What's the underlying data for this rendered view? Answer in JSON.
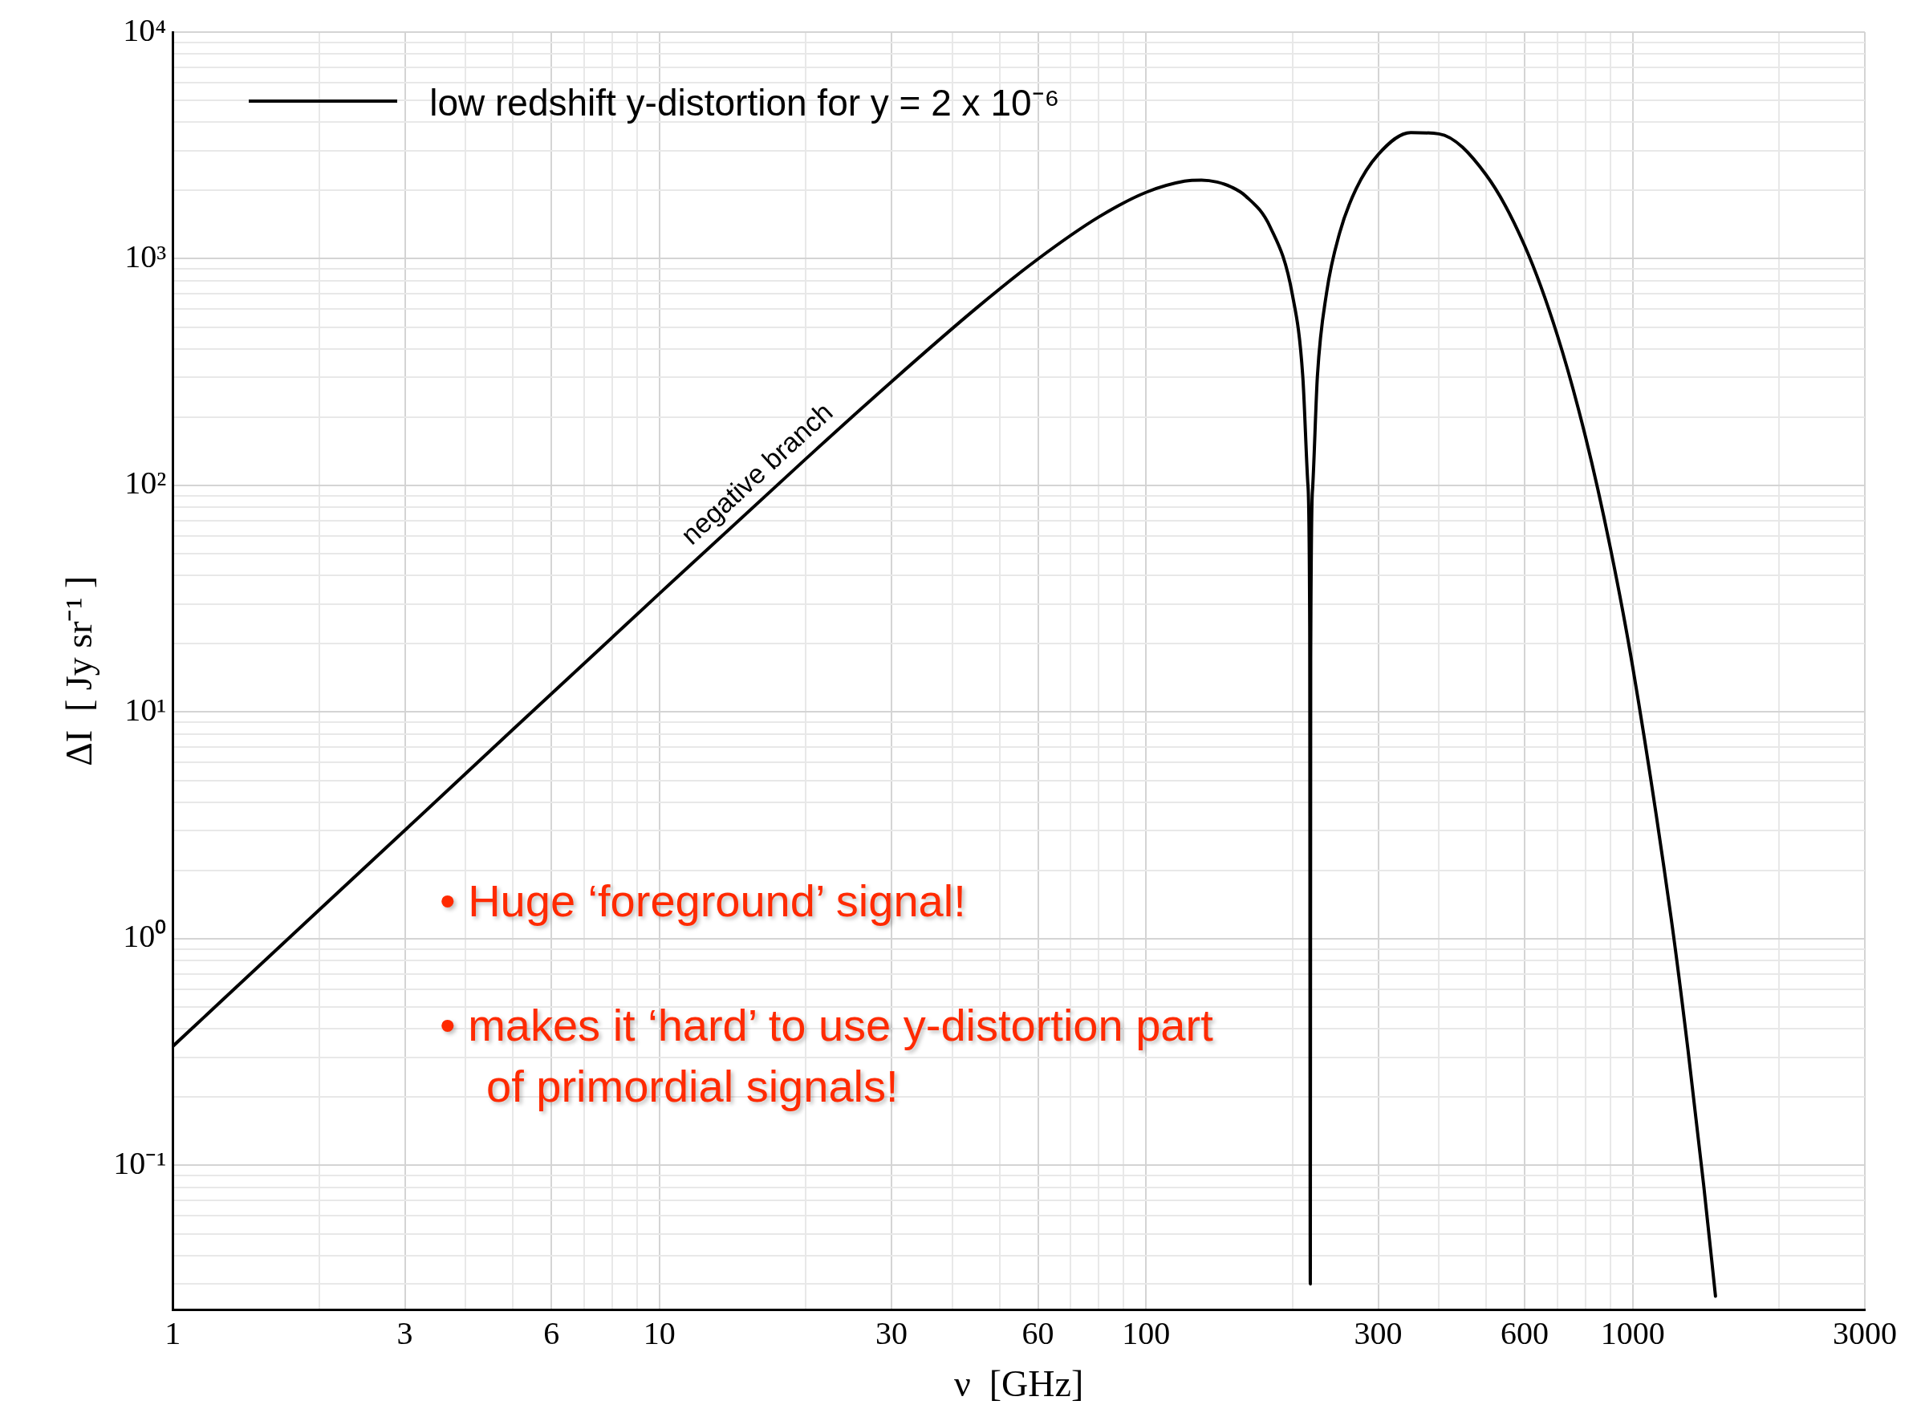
{
  "chart_data": {
    "type": "line",
    "xlabel": "ν  [GHz]",
    "ylabel": "ΔI  [ Jy sr⁻¹ ]",
    "log": "xy",
    "grid": true,
    "legend": "top left",
    "marker": "none",
    "line_style": "solid",
    "xlim": [
      1,
      3000
    ],
    "ylim": [
      0.023,
      10000
    ],
    "xticks": [
      1,
      {
        "value": 2,
        "label": null
      },
      3,
      {
        "value": 4,
        "label": null
      },
      {
        "value": 5,
        "label": null
      },
      6,
      {
        "value": 7,
        "label": null
      },
      {
        "value": 8,
        "label": null
      },
      {
        "value": 9,
        "label": null
      },
      10,
      {
        "value": 20,
        "label": null
      },
      30,
      {
        "value": 40,
        "label": null
      },
      {
        "value": 50,
        "label": null
      },
      60,
      {
        "value": 70,
        "label": null
      },
      {
        "value": 80,
        "label": null
      },
      {
        "value": 90,
        "label": null
      },
      100,
      {
        "value": 200,
        "label": null
      },
      300,
      {
        "value": 400,
        "label": null
      },
      {
        "value": 500,
        "label": null
      },
      600,
      {
        "value": 700,
        "label": null
      },
      {
        "value": 800,
        "label": null
      },
      {
        "value": 900,
        "label": null
      },
      1000,
      {
        "value": 2000,
        "label": null
      },
      3000
    ],
    "yticks": [
      {
        "value": 0.03,
        "label": null
      },
      {
        "value": 0.04,
        "label": null
      },
      {
        "value": 0.05,
        "label": null
      },
      {
        "value": 0.06,
        "label": null
      },
      {
        "value": 0.07,
        "label": null
      },
      {
        "value": 0.08,
        "label": null
      },
      {
        "value": 0.09,
        "label": null
      },
      {
        "value": 0.1,
        "label": "10⁻¹"
      },
      {
        "value": 0.2,
        "label": null
      },
      {
        "value": 0.3,
        "label": null
      },
      {
        "value": 0.4,
        "label": null
      },
      {
        "value": 0.5,
        "label": null
      },
      {
        "value": 0.6,
        "label": null
      },
      {
        "value": 0.7,
        "label": null
      },
      {
        "value": 0.8,
        "label": null
      },
      {
        "value": 0.9,
        "label": null
      },
      {
        "value": 1,
        "label": "10⁰"
      },
      {
        "value": 2,
        "label": null
      },
      {
        "value": 3,
        "label": null
      },
      {
        "value": 4,
        "label": null
      },
      {
        "value": 5,
        "label": null
      },
      {
        "value": 6,
        "label": null
      },
      {
        "value": 7,
        "label": null
      },
      {
        "value": 8,
        "label": null
      },
      {
        "value": 9,
        "label": null
      },
      {
        "value": 10,
        "label": "10¹"
      },
      {
        "value": 20,
        "label": null
      },
      {
        "value": 30,
        "label": null
      },
      {
        "value": 40,
        "label": null
      },
      {
        "value": 50,
        "label": null
      },
      {
        "value": 60,
        "label": null
      },
      {
        "value": 70,
        "label": null
      },
      {
        "value": 80,
        "label": null
      },
      {
        "value": 90,
        "label": null
      },
      {
        "value": 100,
        "label": "10²"
      },
      {
        "value": 200,
        "label": null
      },
      {
        "value": 300,
        "label": null
      },
      {
        "value": 400,
        "label": null
      },
      {
        "value": 500,
        "label": null
      },
      {
        "value": 600,
        "label": null
      },
      {
        "value": 700,
        "label": null
      },
      {
        "value": 800,
        "label": null
      },
      {
        "value": 900,
        "label": null
      },
      {
        "value": 1000,
        "label": "10³"
      },
      {
        "value": 2000,
        "label": null
      },
      {
        "value": 3000,
        "label": null
      },
      {
        "value": 4000,
        "label": null
      },
      {
        "value": 5000,
        "label": null
      },
      {
        "value": 6000,
        "label": null
      },
      {
        "value": 7000,
        "label": null
      },
      {
        "value": 8000,
        "label": null
      },
      {
        "value": 9000,
        "label": null
      },
      {
        "value": 10000,
        "label": "10⁴"
      }
    ],
    "series": [
      {
        "name": "low redshift y-distortion for y = 2 x 10⁻⁶",
        "color": "#000000",
        "x": [
          1,
          2,
          3,
          5,
          10,
          20,
          30,
          45,
          60,
          80,
          100,
          120,
          130,
          140,
          150,
          160,
          180,
          200,
          210,
          215,
          217,
          217.58,
          217.62,
          218,
          220,
          225,
          235,
          250,
          270,
          300,
          350,
          400,
          500,
          600,
          700,
          800,
          900,
          1000,
          1200,
          1300,
          1400,
          1480
        ],
        "values": [
          0.335,
          1.34,
          3.01,
          8.37,
          33.3,
          131,
          287,
          610,
          998,
          1529,
          1963,
          2199,
          2224,
          2180,
          2071,
          1897,
          1380,
          691,
          302,
          103,
          24,
          0.03,
          0.03,
          17,
          97,
          302,
          707,
          1301,
          2025,
          2882,
          3605,
          3555,
          2343,
          1141,
          461,
          164,
          53,
          15.9,
          1.23,
          0.321,
          0.0813,
          0.0265
        ]
      }
    ],
    "annotations": [
      {
        "text": "negative branch",
        "x": 17,
        "y": 96
      },
      "• Huge ‘foreground’ signal!",
      "• makes it ‘hard’ to use y-distortion part of primordial signals!"
    ]
  }
}
